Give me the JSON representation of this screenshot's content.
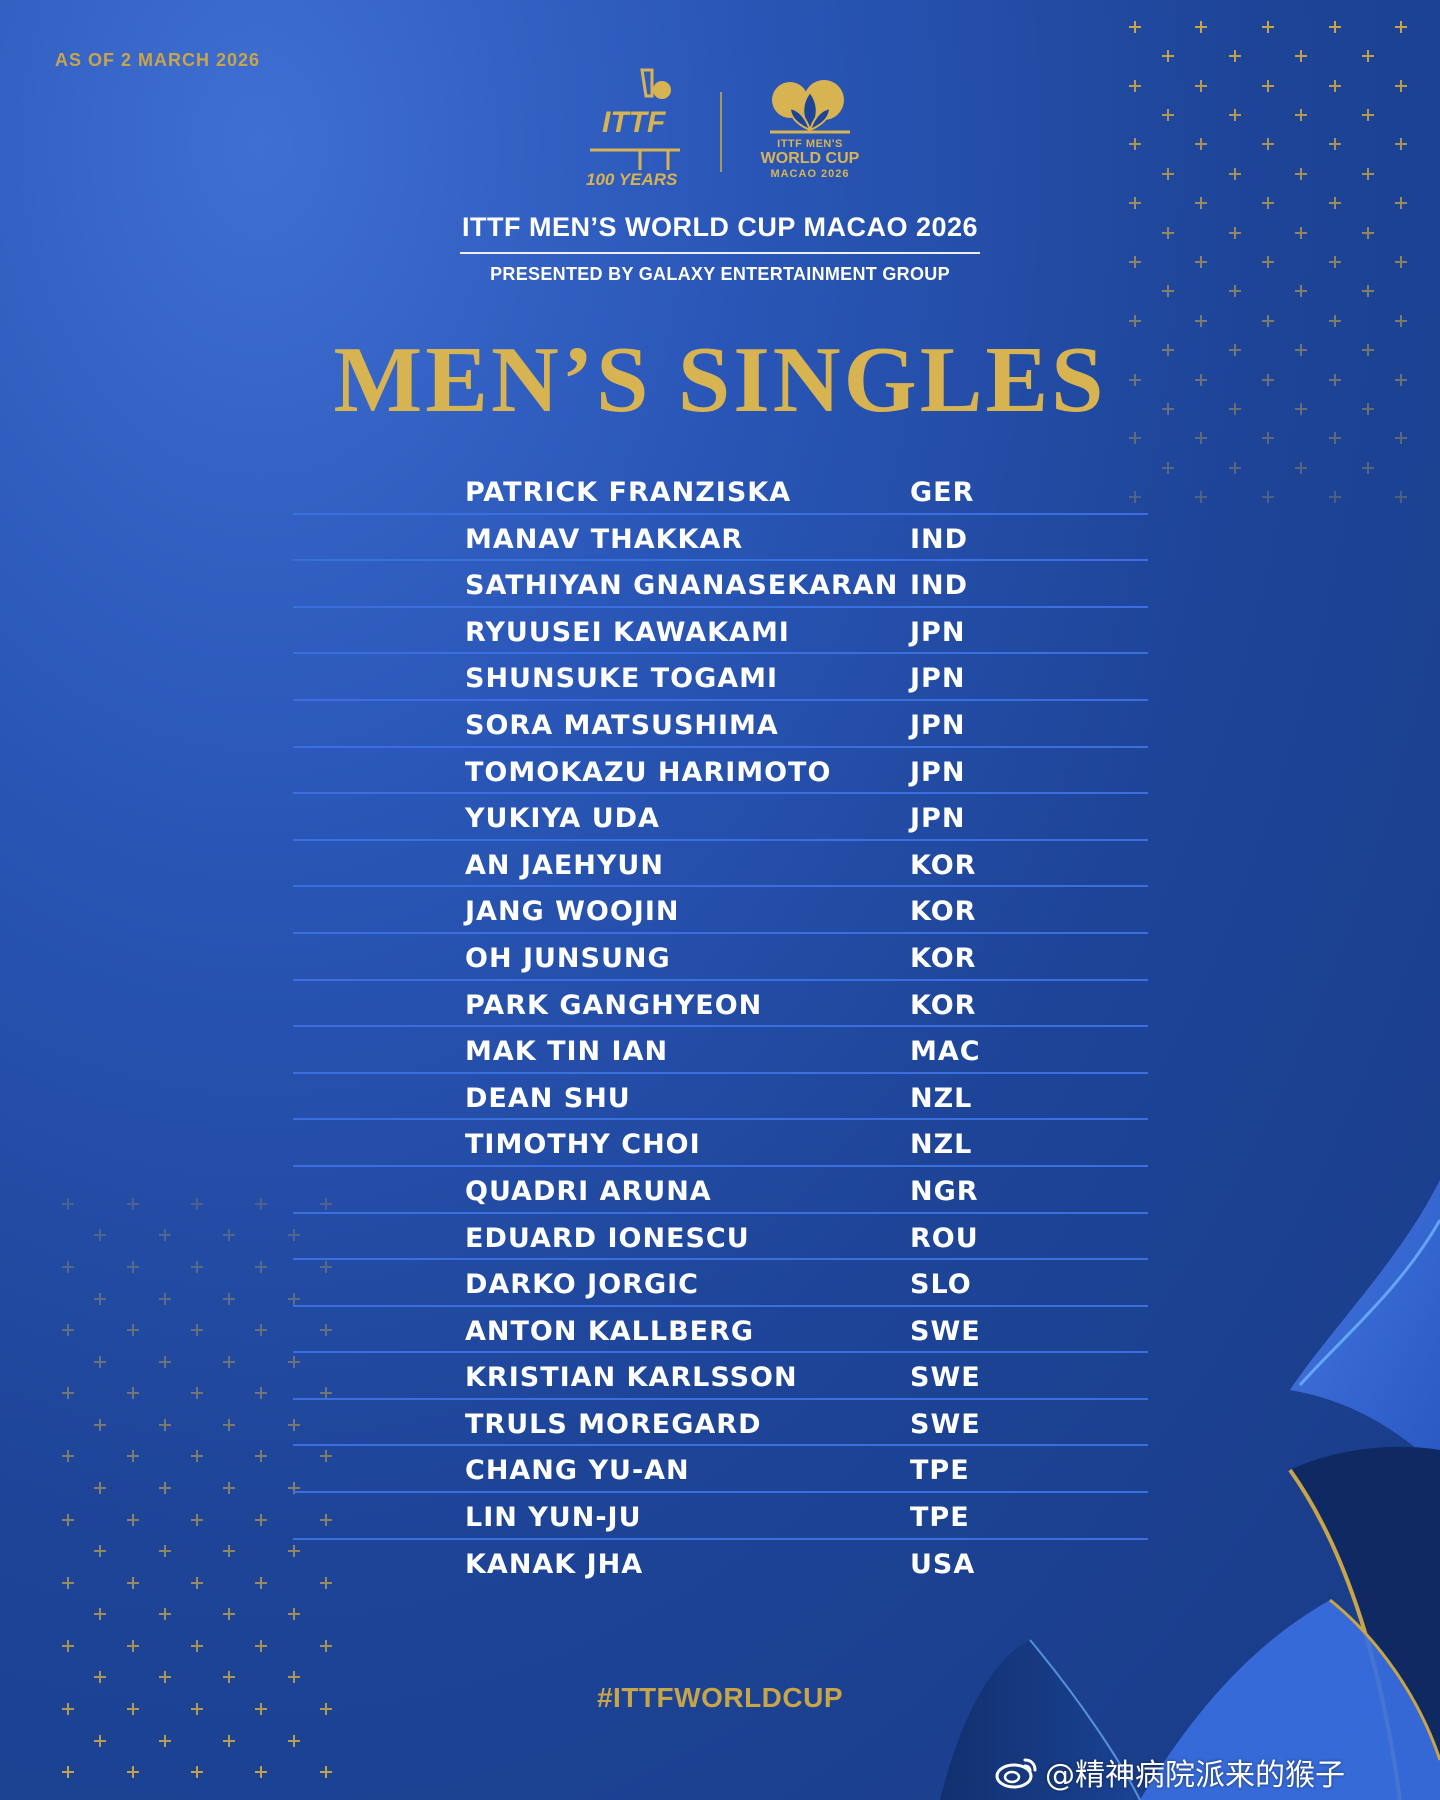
{
  "as_of": "AS OF 2 MARCH 2026",
  "logos": {
    "ittf_text": "ITTF",
    "ittf_years": "100 YEARS",
    "world_cup_line1": "ITTF MEN'S",
    "world_cup_line2": "WORLD CUP",
    "world_cup_line3": "MACAO 2026"
  },
  "event": {
    "title": "ITTF MEN’S WORLD CUP MACAO 2026",
    "subtitle": "PRESENTED BY GALAXY ENTERTAINMENT GROUP"
  },
  "heading": "MEN’S SINGLES",
  "players": [
    {
      "name": "PATRICK FRANZISKA",
      "country": "GER"
    },
    {
      "name": "MANAV THAKKAR",
      "country": "IND"
    },
    {
      "name": "SATHIYAN GNANASEKARAN",
      "country": "IND"
    },
    {
      "name": "RYUUSEI KAWAKAMI",
      "country": "JPN"
    },
    {
      "name": "SHUNSUKE TOGAMI",
      "country": "JPN"
    },
    {
      "name": "SORA MATSUSHIMA",
      "country": "JPN"
    },
    {
      "name": "TOMOKAZU HARIMOTO",
      "country": "JPN"
    },
    {
      "name": "YUKIYA UDA",
      "country": "JPN"
    },
    {
      "name": "AN JAEHYUN",
      "country": "KOR"
    },
    {
      "name": "JANG WOOJIN",
      "country": "KOR"
    },
    {
      "name": "OH JUNSUNG",
      "country": "KOR"
    },
    {
      "name": "PARK GANGHYEON",
      "country": "KOR"
    },
    {
      "name": "MAK TIN IAN",
      "country": "MAC"
    },
    {
      "name": "DEAN SHU",
      "country": "NZL"
    },
    {
      "name": "TIMOTHY CHOI",
      "country": "NZL"
    },
    {
      "name": "QUADRI ARUNA",
      "country": "NGR"
    },
    {
      "name": "EDUARD IONESCU",
      "country": "ROU"
    },
    {
      "name": "DARKO JORGIC",
      "country": "SLO"
    },
    {
      "name": "ANTON KALLBERG",
      "country": "SWE"
    },
    {
      "name": "KRISTIAN KARLSSON",
      "country": "SWE"
    },
    {
      "name": "TRULS MOREGARD",
      "country": "SWE"
    },
    {
      "name": "CHANG YU-AN",
      "country": "TPE"
    },
    {
      "name": "LIN YUN-JU",
      "country": "TPE"
    },
    {
      "name": "KANAK JHA",
      "country": "USA"
    }
  ],
  "hashtag": "#ITTFWORLDCUP",
  "watermark": "@精神病院派来的猴子",
  "icons": {
    "sparkle": "sparkle-icon",
    "weibo": "weibo-icon"
  },
  "colors": {
    "gold": "#d8b352",
    "background": "#1d4497",
    "row_rule": "#3b6fe0"
  }
}
